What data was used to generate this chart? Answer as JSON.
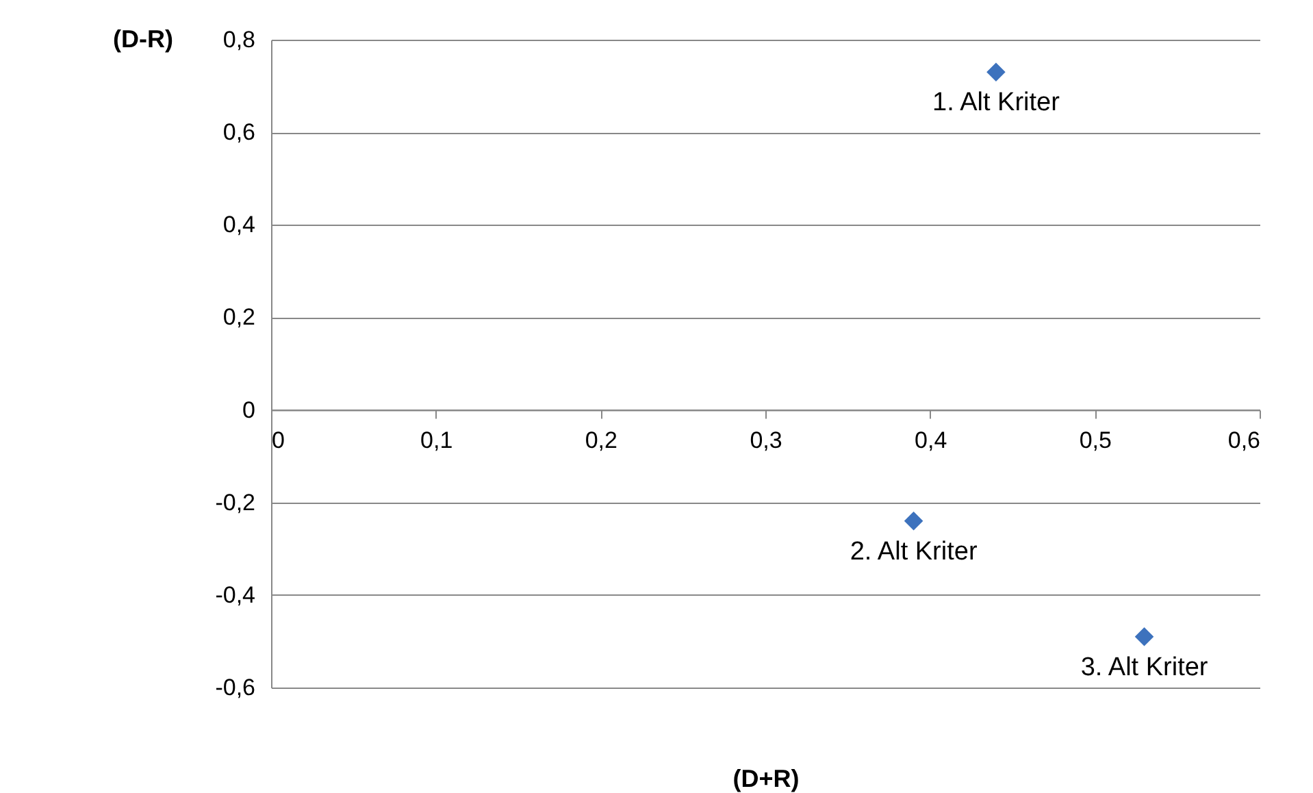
{
  "chart_data": {
    "type": "scatter",
    "xlabel": "(D+R)",
    "ylabel": "(D-R)",
    "x": [
      0.44,
      0.39,
      0.53
    ],
    "series": [
      {
        "color": "#3d72bd",
        "values": [
          0.73,
          -0.24,
          -0.49
        ]
      }
    ],
    "xlim": [
      0,
      0.6
    ],
    "xticks": [
      0,
      {
        "value": 0.1,
        "label": "0,1"
      },
      {
        "value": 0.2,
        "label": "0,2"
      },
      {
        "value": 0.3,
        "label": "0,3"
      },
      {
        "value": 0.4,
        "label": "0,4"
      },
      {
        "value": 0.5,
        "label": "0,5"
      },
      {
        "value": 0.6,
        "label": "0,6"
      }
    ],
    "ylim": [
      -0.6,
      0.8
    ],
    "yticks": [
      {
        "value": -0.6,
        "label": "-0,6"
      },
      {
        "value": -0.4,
        "label": "-0,4"
      },
      {
        "value": -0.2,
        "label": "-0,2"
      },
      0,
      {
        "value": 0.2,
        "label": "0,2"
      },
      {
        "value": 0.4,
        "label": "0,4"
      },
      {
        "value": 0.6,
        "label": "0,6"
      },
      {
        "value": 0.8,
        "label": "0,8"
      }
    ],
    "grid": "y",
    "marker": "diamond",
    "annotations": [
      {
        "text": "1. Alt Kriter",
        "x": 0.44,
        "y": 0.73
      },
      {
        "text": "2. Alt Kriter",
        "x": 0.39,
        "y": -0.24
      },
      {
        "text": "3. Alt Kriter",
        "x": 0.53,
        "y": -0.49
      }
    ]
  }
}
